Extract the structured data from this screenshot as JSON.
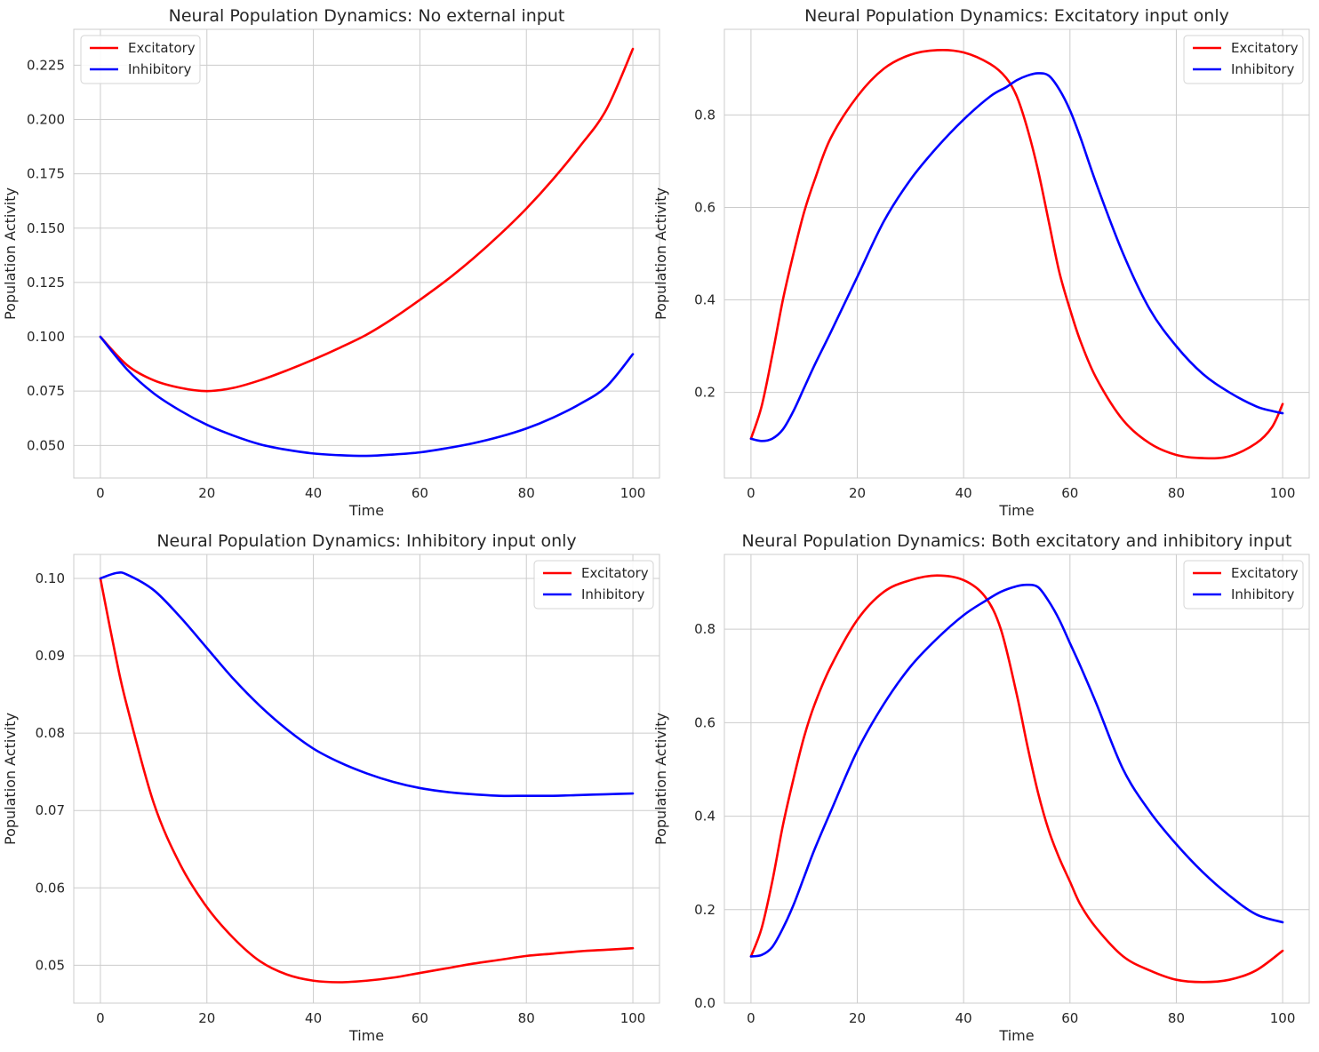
{
  "colors": {
    "excitatory": "#ff0000",
    "inhibitory": "#0000ff",
    "grid": "#cccccc",
    "text": "#262626"
  },
  "chart_data": [
    {
      "type": "line",
      "title": "Neural Population Dynamics: No external input",
      "xlabel": "Time",
      "ylabel": "Population Activity",
      "xlim": [
        -5,
        105
      ],
      "ylim": [
        0.035,
        0.2415
      ],
      "xticks": [
        0,
        20,
        40,
        60,
        80,
        100
      ],
      "yticks": [
        0.05,
        0.075,
        0.1,
        0.125,
        0.15,
        0.175,
        0.2,
        0.225
      ],
      "ytick_labels": [
        "0.050",
        "0.075",
        "0.100",
        "0.125",
        "0.150",
        "0.175",
        "0.200",
        "0.225"
      ],
      "legend": "top-left",
      "grid": true,
      "x": [
        0,
        5,
        10,
        15,
        20,
        25,
        30,
        35,
        40,
        45,
        50,
        55,
        60,
        65,
        70,
        75,
        80,
        85,
        90,
        95,
        100
      ],
      "series": [
        {
          "name": "Excitatory",
          "color_key": "excitatory",
          "values": [
            0.1,
            0.087,
            0.08,
            0.0765,
            0.075,
            0.0765,
            0.08,
            0.0845,
            0.0895,
            0.095,
            0.101,
            0.1085,
            0.117,
            0.126,
            0.136,
            0.147,
            0.159,
            0.1725,
            0.1875,
            0.2045,
            0.2325
          ]
        },
        {
          "name": "Inhibitory",
          "color_key": "inhibitory",
          "values": [
            0.1,
            0.085,
            0.074,
            0.066,
            0.0595,
            0.0545,
            0.0505,
            0.048,
            0.0463,
            0.0455,
            0.0452,
            0.0458,
            0.0468,
            0.0487,
            0.051,
            0.054,
            0.0578,
            0.0628,
            0.069,
            0.077,
            0.092
          ]
        }
      ]
    },
    {
      "type": "line",
      "title": "Neural Population Dynamics: Excitatory input only",
      "xlabel": "Time",
      "ylabel": "Population Activity",
      "xlim": [
        -5,
        105
      ],
      "ylim": [
        0.015,
        0.985
      ],
      "xticks": [
        0,
        20,
        40,
        60,
        80,
        100
      ],
      "yticks": [
        0.2,
        0.4,
        0.6,
        0.8
      ],
      "ytick_labels": [
        "0.2",
        "0.4",
        "0.6",
        "0.8"
      ],
      "legend": "top-right",
      "grid": true,
      "x": [
        0,
        2,
        4,
        6,
        8,
        10,
        12,
        15,
        20,
        25,
        30,
        35,
        40,
        45,
        48,
        50,
        52,
        54,
        56,
        58,
        60,
        62,
        65,
        70,
        75,
        80,
        85,
        90,
        95,
        98,
        100
      ],
      "series": [
        {
          "name": "Excitatory",
          "color_key": "excitatory",
          "values": [
            0.1,
            0.17,
            0.28,
            0.4,
            0.5,
            0.59,
            0.66,
            0.75,
            0.84,
            0.9,
            0.93,
            0.94,
            0.935,
            0.91,
            0.88,
            0.84,
            0.77,
            0.68,
            0.57,
            0.46,
            0.38,
            0.31,
            0.23,
            0.14,
            0.09,
            0.065,
            0.058,
            0.062,
            0.09,
            0.125,
            0.175
          ]
        },
        {
          "name": "Inhibitory",
          "color_key": "inhibitory",
          "values": [
            0.1,
            0.095,
            0.1,
            0.12,
            0.16,
            0.21,
            0.26,
            0.33,
            0.45,
            0.57,
            0.66,
            0.73,
            0.79,
            0.84,
            0.86,
            0.875,
            0.885,
            0.89,
            0.885,
            0.855,
            0.81,
            0.75,
            0.65,
            0.5,
            0.38,
            0.3,
            0.24,
            0.2,
            0.17,
            0.16,
            0.155
          ]
        }
      ]
    },
    {
      "type": "line",
      "title": "Neural Population Dynamics: Inhibitory input only",
      "xlabel": "Time",
      "ylabel": "Population Activity",
      "xlim": [
        -5,
        105
      ],
      "ylim": [
        0.0451,
        0.1031
      ],
      "xticks": [
        0,
        20,
        40,
        60,
        80,
        100
      ],
      "yticks": [
        0.05,
        0.06,
        0.07,
        0.08,
        0.09,
        0.1
      ],
      "ytick_labels": [
        "0.05",
        "0.06",
        "0.07",
        "0.08",
        "0.09",
        "0.10"
      ],
      "legend": "top-right",
      "grid": true,
      "x": [
        0,
        3,
        5,
        10,
        15,
        20,
        25,
        30,
        35,
        40,
        45,
        50,
        55,
        60,
        65,
        70,
        75,
        80,
        85,
        90,
        95,
        100
      ],
      "series": [
        {
          "name": "Excitatory",
          "color_key": "excitatory",
          "values": [
            0.1,
            0.0895,
            0.0835,
            0.071,
            0.063,
            0.0575,
            0.0535,
            0.0505,
            0.0488,
            0.048,
            0.0478,
            0.048,
            0.0484,
            0.049,
            0.0496,
            0.0502,
            0.0507,
            0.0512,
            0.0515,
            0.0518,
            0.052,
            0.0522
          ]
        },
        {
          "name": "Inhibitory",
          "color_key": "inhibitory",
          "values": [
            0.1,
            0.1007,
            0.1005,
            0.0985,
            0.095,
            0.091,
            0.087,
            0.0835,
            0.0805,
            0.078,
            0.0762,
            0.0748,
            0.0737,
            0.0729,
            0.0724,
            0.0721,
            0.0719,
            0.0719,
            0.0719,
            0.072,
            0.0721,
            0.0722
          ]
        }
      ]
    },
    {
      "type": "line",
      "title": "Neural Population Dynamics: Both excitatory and inhibitory input",
      "xlabel": "Time",
      "ylabel": "Population Activity",
      "xlim": [
        -5,
        105
      ],
      "ylim": [
        0,
        0.96
      ],
      "xticks": [
        0,
        20,
        40,
        60,
        80,
        100
      ],
      "yticks": [
        0.0,
        0.2,
        0.4,
        0.6,
        0.8
      ],
      "ytick_labels": [
        "0.0",
        "0.2",
        "0.4",
        "0.6",
        "0.8"
      ],
      "legend": "top-right",
      "grid": true,
      "x": [
        0,
        2,
        4,
        6,
        8,
        10,
        12,
        15,
        20,
        25,
        30,
        35,
        40,
        44,
        47,
        50,
        52,
        54,
        56,
        58,
        60,
        62,
        65,
        70,
        75,
        80,
        85,
        90,
        95,
        100
      ],
      "series": [
        {
          "name": "Excitatory",
          "color_key": "excitatory",
          "values": [
            0.1,
            0.16,
            0.26,
            0.38,
            0.48,
            0.57,
            0.64,
            0.72,
            0.82,
            0.88,
            0.905,
            0.915,
            0.905,
            0.87,
            0.8,
            0.66,
            0.55,
            0.45,
            0.37,
            0.31,
            0.26,
            0.21,
            0.16,
            0.1,
            0.07,
            0.05,
            0.045,
            0.05,
            0.07,
            0.112
          ]
        },
        {
          "name": "Inhibitory",
          "color_key": "inhibitory",
          "values": [
            0.1,
            0.103,
            0.12,
            0.16,
            0.21,
            0.27,
            0.33,
            0.41,
            0.54,
            0.64,
            0.72,
            0.78,
            0.83,
            0.86,
            0.88,
            0.892,
            0.895,
            0.89,
            0.86,
            0.82,
            0.77,
            0.72,
            0.64,
            0.5,
            0.41,
            0.34,
            0.28,
            0.23,
            0.19,
            0.173
          ]
        }
      ]
    }
  ]
}
